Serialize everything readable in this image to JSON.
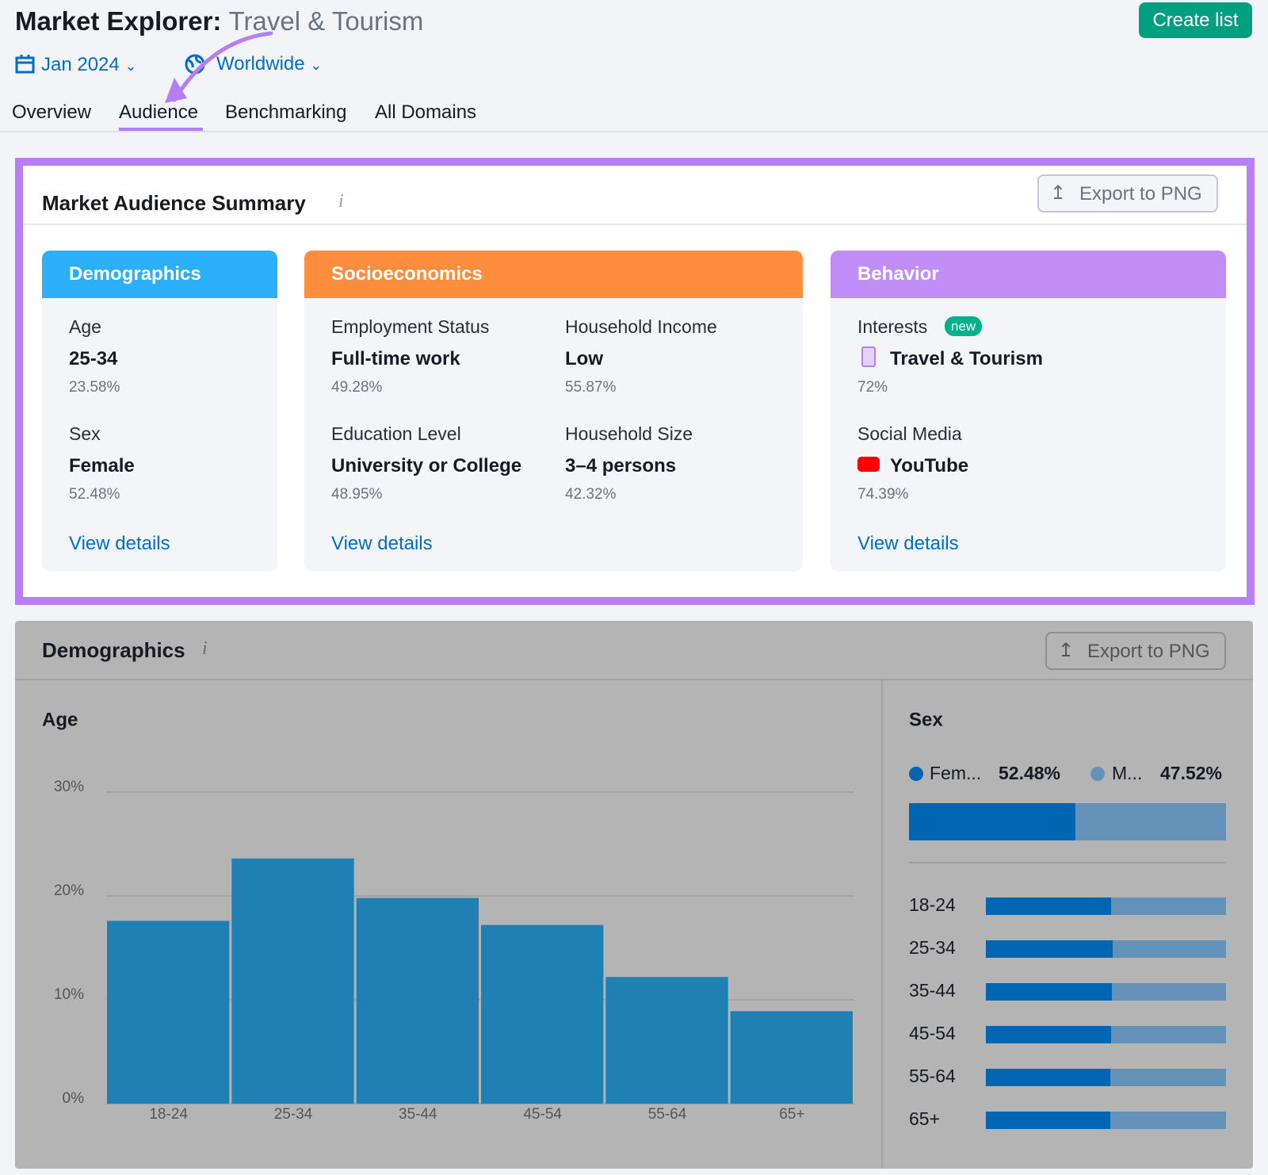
{
  "header": {
    "title_prefix": "Market Explorer:",
    "title_market": "Travel & Tourism",
    "date": "Jan 2024",
    "region": "Worldwide",
    "button": "Create list"
  },
  "tabs": [
    "Overview",
    "Audience",
    "Benchmarking",
    "All Domains"
  ],
  "summary": {
    "title": "Market Audience Summary",
    "export": "Export to PNG",
    "cards": [
      {
        "title": "Demographics",
        "items": [
          {
            "label": "Age",
            "value": "25-34",
            "percent": "23.58%"
          },
          {
            "label": "Sex",
            "value": "Female",
            "percent": "52.48%"
          }
        ],
        "link": "View details"
      },
      {
        "title": "Socioeconomics",
        "items": [
          {
            "label": "Employment Status",
            "value": "Full-time work",
            "percent": "49.28%"
          },
          {
            "label": "Household Income",
            "value": "Low",
            "percent": "55.87%"
          },
          {
            "label": "Education Level",
            "value": "University or College",
            "percent": "48.95%"
          },
          {
            "label": "Household Size",
            "value": "3–4 persons",
            "percent": "42.32%"
          }
        ],
        "link": "View details"
      },
      {
        "title": "Behavior",
        "items": [
          {
            "label": "Interests",
            "badge": "new",
            "value": "Travel & Tourism",
            "percent": "72%"
          },
          {
            "label": "Social Media",
            "value": "YouTube",
            "percent": "74.39%"
          }
        ],
        "link": "View details"
      }
    ]
  },
  "demographics": {
    "title": "Demographics",
    "export": "Export to PNG"
  },
  "chart_data": [
    {
      "type": "bar",
      "title": "Age",
      "categories": [
        "18-24",
        "25-34",
        "35-44",
        "45-54",
        "55-64",
        "65+"
      ],
      "values": [
        17.6,
        23.6,
        19.8,
        17.2,
        12.2,
        8.9
      ],
      "color": "#1f80b4",
      "ylim": [
        0,
        30
      ],
      "yticks": [
        {
          "value": 0,
          "label": "0%"
        },
        {
          "value": 10,
          "label": "10%"
        },
        {
          "value": 20,
          "label": "20%"
        },
        {
          "value": 30,
          "label": "30%"
        }
      ],
      "grid": true
    },
    {
      "type": "stacked-bar",
      "title": "Sex",
      "categories": [
        "18-24",
        "25-34",
        "35-44",
        "45-54",
        "55-64",
        "65+"
      ],
      "series": [
        {
          "name": "Fem...",
          "color": "#0065b3",
          "total": 52.48,
          "total_label": "52.48%",
          "values": [
            52.2,
            52.9,
            52.5,
            52.2,
            51.9,
            51.9
          ]
        },
        {
          "name": "M...",
          "color": "#6391b8",
          "total": 47.52,
          "total_label": "47.52%",
          "values": [
            47.8,
            47.1,
            47.5,
            47.8,
            48.1,
            48.1
          ]
        }
      ]
    }
  ]
}
